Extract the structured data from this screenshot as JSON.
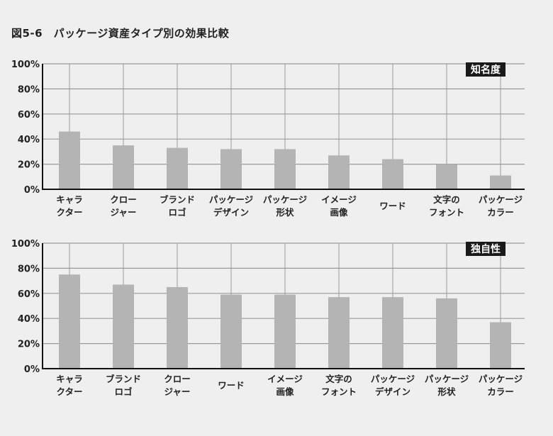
{
  "title": "図5-6　パッケージ資産タイプ別の効果比較",
  "chart_data": [
    {
      "type": "bar",
      "title": "知名度",
      "categories": [
        [
          "キャラ",
          "クター"
        ],
        [
          "クロー",
          "ジャー"
        ],
        [
          "ブランド",
          "ロゴ"
        ],
        [
          "パッケージ",
          "デザイン"
        ],
        [
          "パッケージ",
          "形状"
        ],
        [
          "イメージ",
          "画像"
        ],
        [
          "ワード"
        ],
        [
          "文字の",
          "フォント"
        ],
        [
          "パッケージ",
          "カラー"
        ]
      ],
      "values": [
        46,
        35,
        33,
        32,
        32,
        27,
        24,
        20,
        11
      ],
      "ylim": [
        0,
        100
      ],
      "yticks": [
        "0%",
        "20%",
        "40%",
        "60%",
        "80%",
        "100%"
      ],
      "bar_color": "#b4b4b4",
      "grid": true,
      "label_position": "top-right"
    },
    {
      "type": "bar",
      "title": "独自性",
      "categories": [
        [
          "キャラ",
          "クター"
        ],
        [
          "ブランド",
          "ロゴ"
        ],
        [
          "クロー",
          "ジャー"
        ],
        [
          "ワード"
        ],
        [
          "イメージ",
          "画像"
        ],
        [
          "文字の",
          "フォント"
        ],
        [
          "パッケージ",
          "デザイン"
        ],
        [
          "パッケージ",
          "形状"
        ],
        [
          "パッケージ",
          "カラー"
        ]
      ],
      "values": [
        75,
        67,
        65,
        59,
        59,
        57,
        57,
        56,
        37
      ],
      "ylim": [
        0,
        100
      ],
      "yticks": [
        "0%",
        "20%",
        "40%",
        "60%",
        "80%",
        "100%"
      ],
      "bar_color": "#b4b4b4",
      "grid": true,
      "label_position": "top-right"
    }
  ]
}
